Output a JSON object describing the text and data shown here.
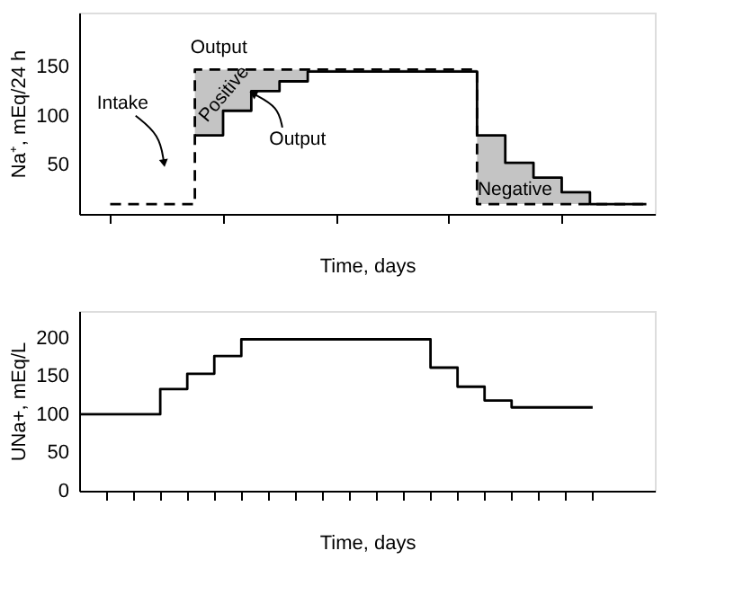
{
  "chart_data": [
    {
      "type": "step",
      "xlabel": "Time, days",
      "ylabel": "Na⁺, mEq/24 h",
      "ylim": [
        0,
        205
      ],
      "yticks": [
        50,
        100,
        150
      ],
      "grid": false,
      "categories": [
        null,
        null,
        null,
        null,
        null,
        null,
        null,
        null,
        null,
        null,
        null,
        null,
        null,
        null,
        null,
        null,
        null,
        null,
        null,
        null
      ],
      "series": [
        {
          "color": "#000000",
          "line_style": "dashed",
          "values": [
            10,
            10,
            10,
            147,
            147,
            147,
            147,
            147,
            147,
            147,
            147,
            147,
            147,
            10,
            10,
            10,
            10,
            10,
            10,
            10
          ]
        },
        {
          "color": "#000000",
          "line_style": "solid",
          "values": [
            null,
            null,
            null,
            80,
            105,
            125,
            135,
            145,
            145,
            145,
            145,
            145,
            145,
            80,
            52,
            37,
            22,
            10,
            10,
            10
          ],
          "lower": [
            null,
            null,
            null,
            80,
            105,
            125,
            135,
            145,
            145,
            145,
            145,
            145,
            145,
            10,
            10,
            10,
            10,
            10,
            null,
            null
          ],
          "upper": [
            null,
            null,
            null,
            147,
            147,
            147,
            147,
            147,
            147,
            147,
            147,
            147,
            147,
            80,
            52,
            37,
            22,
            10,
            null,
            null
          ]
        }
      ],
      "annotations": [
        {
          "text": "Output",
          "y": 147
        },
        "Intake",
        "Positive",
        "Output",
        {
          "text": "Negative",
          "y": 20
        }
      ]
    },
    {
      "type": "step",
      "xlabel": "Time, days",
      "ylabel": "UNa+, mEq/L",
      "ylim": [
        0,
        235
      ],
      "yticks": [
        0,
        50,
        100,
        150,
        200
      ],
      "grid": false,
      "categories": [
        null,
        null,
        null,
        null,
        null,
        null,
        null,
        null,
        null,
        null,
        null,
        null,
        null,
        null,
        null,
        null,
        null,
        null,
        null,
        null
      ],
      "series": [
        {
          "color": "#000000",
          "line_style": "solid",
          "values": [
            100,
            100,
            100,
            133,
            153,
            176,
            198,
            198,
            198,
            198,
            198,
            198,
            198,
            161,
            136,
            118,
            109,
            109,
            109,
            109
          ]
        }
      ]
    }
  ]
}
